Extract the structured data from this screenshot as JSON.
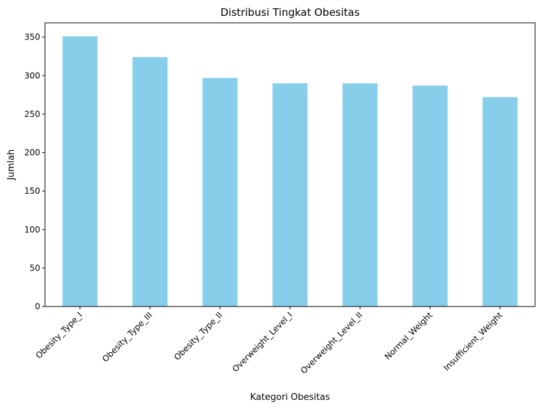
{
  "chart_data": {
    "type": "bar",
    "title": "Distribusi Tingkat Obesitas",
    "xlabel": "Kategori Obesitas",
    "ylabel": "Jumlah",
    "categories": [
      "Obesity_Type_I",
      "Obesity_Type_III",
      "Obesity_Type_II",
      "Overweight_Level_I",
      "Overweight_Level_II",
      "Normal_Weight",
      "Insufficient_Weight"
    ],
    "values": [
      351,
      324,
      297,
      290,
      290,
      287,
      272
    ],
    "ylim": [
      0,
      368.55
    ],
    "yticks": [
      0,
      50,
      100,
      150,
      200,
      250,
      300,
      350
    ],
    "grid": false,
    "bar_color": "#87ceeb",
    "x_tick_rotation_deg": 45
  }
}
